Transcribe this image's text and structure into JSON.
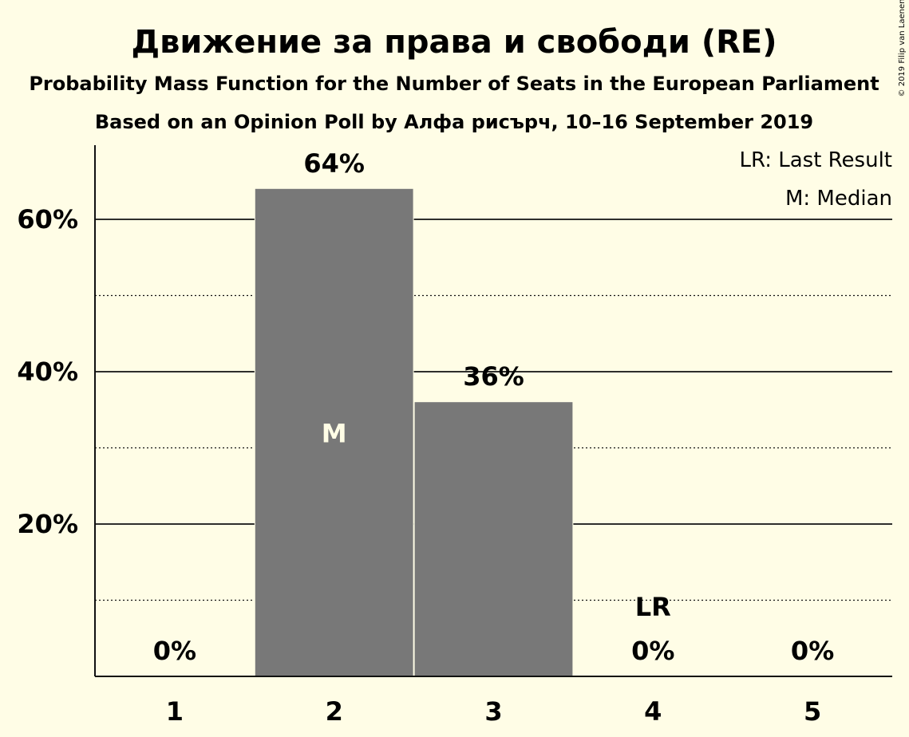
{
  "chart_data": {
    "type": "bar",
    "title": "Движение за права и свободи (RE)",
    "subtitle": "Probability Mass Function for the Number of Seats in the European Parliament",
    "subtitle2": "Based on an Opinion Poll by Алфа рисърч, 10–16 September 2019",
    "categories": [
      "1",
      "2",
      "3",
      "4",
      "5"
    ],
    "values": [
      0,
      64,
      36,
      0,
      0
    ],
    "value_labels": [
      "0%",
      "64%",
      "36%",
      "0%",
      "0%"
    ],
    "ylim": [
      0,
      70
    ],
    "yticks": [
      {
        "value": 20,
        "label": "20%"
      },
      {
        "value": 40,
        "label": "40%"
      },
      {
        "value": 60,
        "label": "60%"
      }
    ],
    "minor_gridlines": [
      10,
      30,
      50
    ],
    "median_category": "2",
    "median_marker": "M",
    "last_result_category": "4",
    "last_result_marker": "LR",
    "legend": [
      "LR: Last Result",
      "M: Median"
    ],
    "legend_position": "top-right",
    "copyright": "© 2019 Filip van Laenen",
    "colors": {
      "background": "#fffde6",
      "bar": "#787878",
      "text": "#111111",
      "median_text": "#fffde6"
    }
  }
}
